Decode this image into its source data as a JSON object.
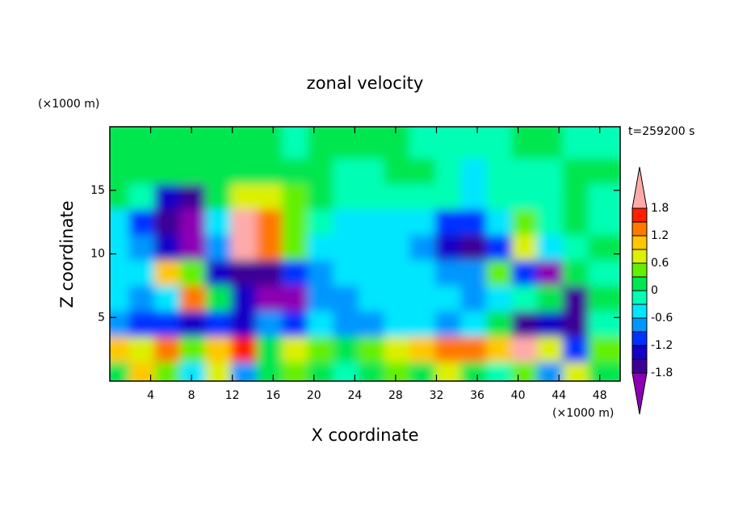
{
  "chart_data": {
    "type": "contour",
    "title": "zonal velocity",
    "subtitle": "t=259200 s",
    "xlabel": "X coordinate",
    "ylabel": "Z coordinate",
    "xunit": "(×1000 m)",
    "yunit": "(×1000 m)",
    "xlim": [
      0,
      50
    ],
    "ylim": [
      0,
      20
    ],
    "xticks": [
      4,
      8,
      12,
      16,
      20,
      24,
      28,
      32,
      36,
      40,
      44,
      48
    ],
    "yticks": [
      5,
      10,
      15
    ],
    "x": [
      1.25,
      3.75,
      6.25,
      8.75,
      11.25,
      13.75,
      16.25,
      18.75,
      21.25,
      23.75,
      26.25,
      28.75,
      31.25,
      33.75,
      36.25,
      38.75,
      41.25,
      43.75,
      46.25,
      48.75
    ],
    "y": [
      1,
      3,
      5,
      7,
      9,
      11,
      13,
      15,
      17,
      19
    ],
    "z": [
      [
        0.3,
        1.2,
        0.6,
        -0.3,
        0.9,
        -0.6,
        0.3,
        0.6,
        0.3,
        0,
        0.3,
        0.6,
        0.3,
        0.9,
        0.3,
        0,
        0.6,
        -0.6,
        0.9,
        0.3
      ],
      [
        1.2,
        0.9,
        1.5,
        0.6,
        1.2,
        1.6,
        0.3,
        0.9,
        0.6,
        0.3,
        0.6,
        0.9,
        1.2,
        1.5,
        1.5,
        1.2,
        1.9,
        0.9,
        -0.9,
        0.6
      ],
      [
        -0.6,
        -0.9,
        -1.0,
        -1.2,
        -0.9,
        -1.3,
        -0.6,
        -0.9,
        -0.3,
        -0.6,
        -0.6,
        -0.3,
        -0.3,
        -0.6,
        -0.3,
        0.3,
        -1.6,
        -1.2,
        -1.5,
        0
      ],
      [
        -0.3,
        -0.6,
        -0.3,
        1.5,
        0.3,
        -1.2,
        -1.9,
        -1.8,
        -0.6,
        -0.6,
        -0.3,
        -0.3,
        -0.3,
        -0.3,
        -0.6,
        -0.3,
        0,
        0.3,
        -1.5,
        0.3
      ],
      [
        -0.3,
        -0.3,
        1.0,
        0.6,
        -1.3,
        -1.6,
        -1.5,
        -1.0,
        -0.6,
        -0.3,
        -0.3,
        -0.3,
        -0.3,
        -0.6,
        -0.6,
        0.6,
        -0.9,
        -1.8,
        0.3,
        0
      ],
      [
        -0.3,
        -0.6,
        -1.2,
        -1.9,
        -0.6,
        2.0,
        1.5,
        0.6,
        -0.3,
        -0.3,
        -0.3,
        -0.3,
        -0.6,
        -1.2,
        -1.5,
        -0.9,
        0.9,
        -0.3,
        0,
        0.3
      ],
      [
        -0.3,
        -0.9,
        -1.5,
        -1.8,
        -0.3,
        1.9,
        1.5,
        0.6,
        0,
        -0.3,
        -0.3,
        -0.3,
        -0.3,
        -0.9,
        -1.0,
        -0.3,
        0.6,
        0,
        0.3,
        0
      ],
      [
        0.3,
        0,
        -1.2,
        -1.5,
        0.3,
        0.9,
        0.9,
        0.6,
        0.3,
        0,
        0,
        0,
        0,
        0,
        -0.3,
        0,
        0,
        0,
        0.3,
        0
      ],
      [
        0.3,
        0.3,
        0.3,
        0.3,
        0.3,
        0.3,
        0.3,
        0.3,
        0.3,
        0,
        0,
        0.3,
        0.3,
        0,
        -0.3,
        0,
        0,
        0,
        0.3,
        0.3
      ],
      [
        0.3,
        0.3,
        0.3,
        0.3,
        0.3,
        0.3,
        0.3,
        0,
        0.3,
        0.3,
        0.3,
        0.3,
        0,
        0,
        0,
        0,
        0.3,
        0.3,
        0,
        0
      ]
    ],
    "levels": [
      -1.8,
      -1.5,
      -1.2,
      -0.9,
      -0.6,
      -0.3,
      0,
      0.3,
      0.6,
      0.9,
      1.2,
      1.5,
      1.8
    ],
    "colors": [
      "#8c00b4",
      "#3c0096",
      "#1400c8",
      "#0032ff",
      "#0096ff",
      "#00e6ff",
      "#00ffb4",
      "#00e650",
      "#64f000",
      "#dcf000",
      "#ffc800",
      "#ff7800",
      "#ff1e00",
      "#ffaaaa"
    ],
    "cticks": [
      1.8,
      1.2,
      0.6,
      0,
      -0.6,
      -1.2,
      -1.8
    ]
  }
}
